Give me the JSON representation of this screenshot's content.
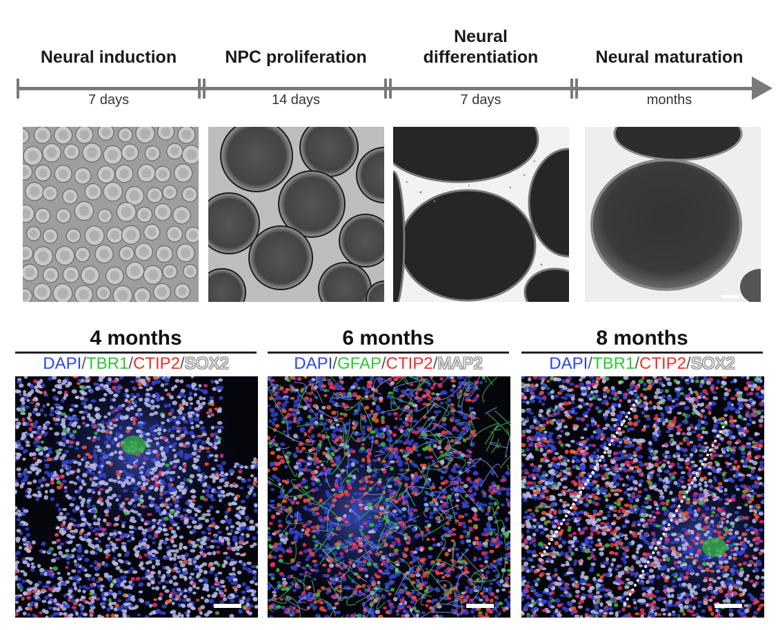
{
  "timeline": {
    "stages": [
      {
        "title": "Neural induction",
        "duration": "7 days"
      },
      {
        "title": "NPC proliferation",
        "duration": "14 days"
      },
      {
        "title": "Neural differentiation",
        "title_line1": "Neural",
        "title_line2": "differentiation",
        "duration": "7 days"
      },
      {
        "title": "Neural maturation",
        "duration": "months"
      }
    ]
  },
  "immunostaining": {
    "panels": [
      {
        "title": "4 months",
        "markers": [
          "DAPI",
          "TBR1",
          "CTIP2",
          "SOX2"
        ]
      },
      {
        "title": "6 months",
        "markers": [
          "DAPI",
          "GFAP",
          "CTIP2",
          "MAP2"
        ]
      },
      {
        "title": "8 months",
        "markers": [
          "DAPI",
          "TBR1",
          "CTIP2",
          "SOX2"
        ]
      }
    ],
    "separator": "/"
  },
  "colors": {
    "timeline": "#7a7a7a",
    "dapi": "#2a45e8",
    "marker_green": "#32c43a",
    "marker_red": "#e8322a",
    "marker_grey": "#e4e4e4"
  }
}
